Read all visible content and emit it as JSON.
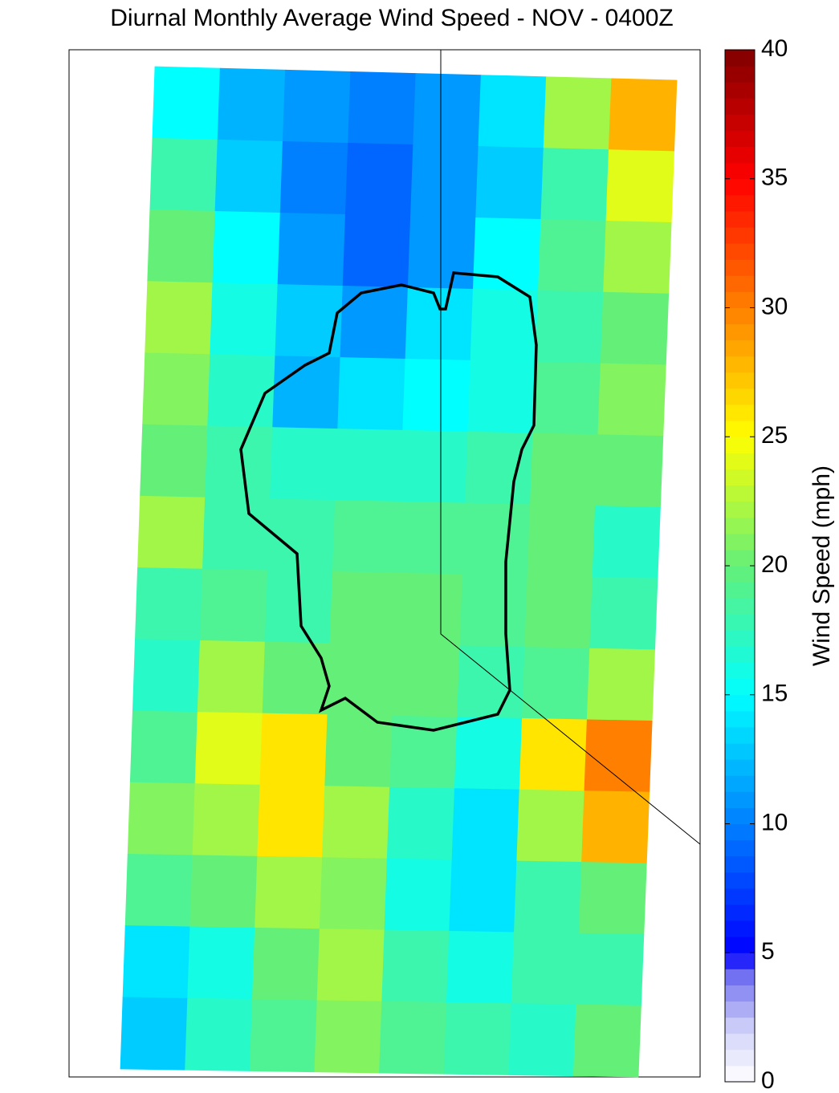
{
  "chart_data": {
    "type": "heatmap",
    "title": "Diurnal Monthly Average Wind Speed - NOV - 0400Z",
    "colorbar_label": "Wind Speed (mph)",
    "clim": [
      0,
      40
    ],
    "cticks": [
      0,
      5,
      10,
      15,
      20,
      25,
      30,
      35,
      40
    ],
    "values": [
      [
        15,
        12,
        11,
        10,
        11,
        14,
        22,
        28
      ],
      [
        18,
        13,
        10,
        9,
        11,
        13,
        18,
        24
      ],
      [
        20,
        15,
        11,
        9,
        11,
        15,
        19,
        22
      ],
      [
        22,
        16,
        13,
        11,
        14,
        16,
        18,
        20
      ],
      [
        21,
        17,
        12,
        14,
        15,
        16,
        19,
        21
      ],
      [
        20,
        18,
        17,
        17,
        17,
        18,
        20,
        20
      ],
      [
        22,
        18,
        18,
        19,
        19,
        19,
        20,
        17
      ],
      [
        18,
        19,
        18,
        20,
        20,
        19,
        20,
        18
      ],
      [
        17,
        22,
        20,
        20,
        20,
        18,
        19,
        22
      ],
      [
        19,
        24,
        26,
        20,
        19,
        16,
        26,
        30
      ],
      [
        21,
        22,
        26,
        22,
        17,
        14,
        22,
        28
      ],
      [
        19,
        20,
        22,
        21,
        16,
        14,
        18,
        20
      ],
      [
        14,
        16,
        20,
        22,
        18,
        16,
        18,
        18
      ],
      [
        13,
        17,
        19,
        21,
        19,
        18,
        17,
        20
      ]
    ]
  }
}
